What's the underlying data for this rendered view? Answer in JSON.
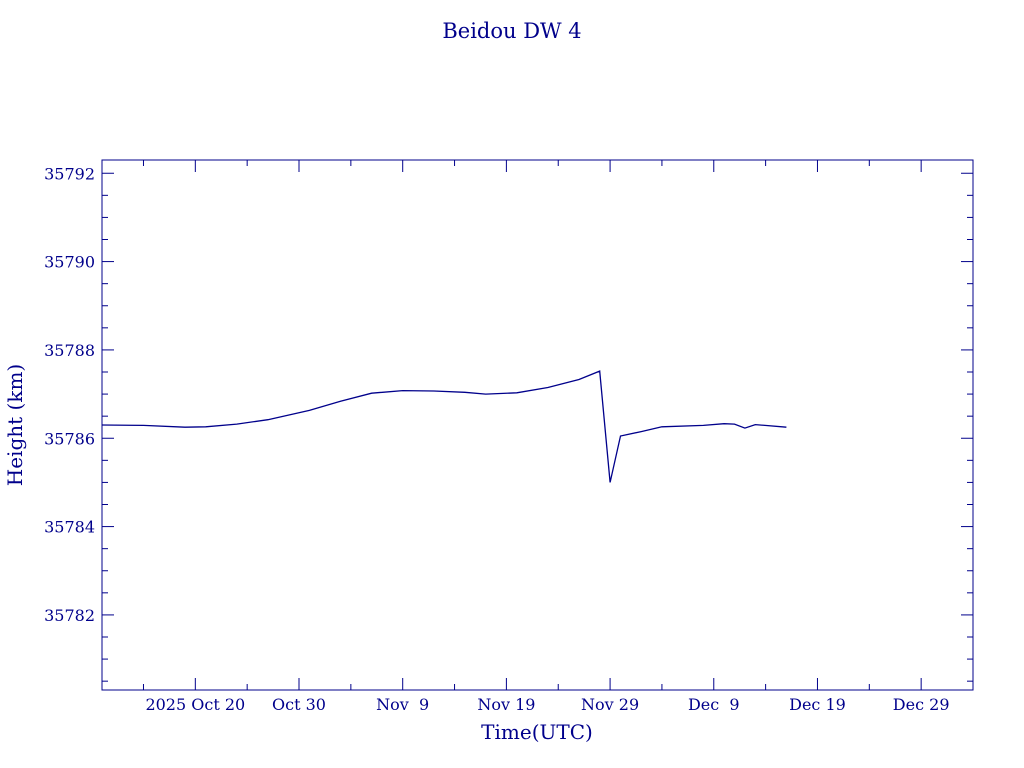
{
  "chart_data": {
    "type": "line",
    "title": "Beidou DW 4",
    "xlabel": "Time(UTC)",
    "ylabel": "Height (km)",
    "color": "#00008b",
    "ylim": [
      35780.3,
      35792.3
    ],
    "xlim": [
      "2025-10-11",
      "2026-01-03"
    ],
    "x_ticks": [
      {
        "date": "2025-10-20",
        "label": "2025 Oct 20"
      },
      {
        "date": "2025-10-30",
        "label": "Oct 30"
      },
      {
        "date": "2025-11-09",
        "label": "Nov  9"
      },
      {
        "date": "2025-11-19",
        "label": "Nov 19"
      },
      {
        "date": "2025-11-29",
        "label": "Nov 29"
      },
      {
        "date": "2025-12-09",
        "label": "Dec  9"
      },
      {
        "date": "2025-12-19",
        "label": "Dec 19"
      },
      {
        "date": "2025-12-29",
        "label": "Dec 29"
      }
    ],
    "y_ticks": [
      {
        "value": 35782,
        "label": "35782"
      },
      {
        "value": 35784,
        "label": "35784"
      },
      {
        "value": 35786,
        "label": "35786"
      },
      {
        "value": 35788,
        "label": "35788"
      },
      {
        "value": 35790,
        "label": "35790"
      },
      {
        "value": 35792,
        "label": "35792"
      }
    ],
    "series": [
      {
        "points": [
          [
            "2025-10-11",
            35786.3
          ],
          [
            "2025-10-15",
            35786.29
          ],
          [
            "2025-10-19",
            35786.25
          ],
          [
            "2025-10-21",
            35786.26
          ],
          [
            "2025-10-24",
            35786.32
          ],
          [
            "2025-10-27",
            35786.42
          ],
          [
            "2025-10-31",
            35786.63
          ],
          [
            "2025-11-03",
            35786.84
          ],
          [
            "2025-11-06",
            35787.02
          ],
          [
            "2025-11-09",
            35787.08
          ],
          [
            "2025-11-12",
            35787.07
          ],
          [
            "2025-11-15",
            35787.04
          ],
          [
            "2025-11-17",
            35787.0
          ],
          [
            "2025-11-20",
            35787.03
          ],
          [
            "2025-11-23",
            35787.15
          ],
          [
            "2025-11-26",
            35787.33
          ],
          [
            "2025-11-28",
            35787.52
          ],
          [
            "2025-11-29",
            35785.0
          ],
          [
            "2025-11-30",
            35786.05
          ],
          [
            "2025-12-02",
            35786.15
          ],
          [
            "2025-12-04",
            35786.26
          ],
          [
            "2025-12-08",
            35786.29
          ],
          [
            "2025-12-10",
            35786.33
          ],
          [
            "2025-12-11",
            35786.32
          ],
          [
            "2025-12-12",
            35786.23
          ],
          [
            "2025-12-13",
            35786.31
          ],
          [
            "2025-12-16",
            35786.25
          ]
        ]
      }
    ],
    "grid": false,
    "legend": "none"
  }
}
